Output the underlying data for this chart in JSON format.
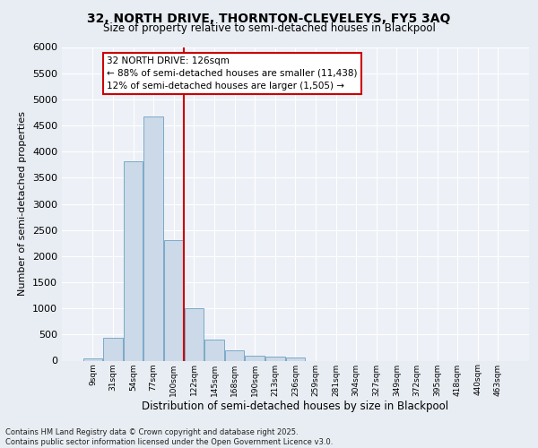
{
  "title_line1": "32, NORTH DRIVE, THORNTON-CLEVELEYS, FY5 3AQ",
  "title_line2": "Size of property relative to semi-detached houses in Blackpool",
  "xlabel": "Distribution of semi-detached houses by size in Blackpool",
  "ylabel": "Number of semi-detached properties",
  "bin_labels": [
    "9sqm",
    "31sqm",
    "54sqm",
    "77sqm",
    "100sqm",
    "122sqm",
    "145sqm",
    "168sqm",
    "190sqm",
    "213sqm",
    "236sqm",
    "259sqm",
    "281sqm",
    "304sqm",
    "327sqm",
    "349sqm",
    "372sqm",
    "395sqm",
    "418sqm",
    "440sqm",
    "463sqm"
  ],
  "bar_heights": [
    50,
    440,
    3820,
    4680,
    2300,
    1000,
    400,
    200,
    90,
    80,
    55,
    0,
    0,
    0,
    0,
    0,
    0,
    0,
    0,
    0,
    0
  ],
  "bar_color": "#ccd9e8",
  "bar_edge_color": "#7aaac8",
  "vline_x_idx": 5,
  "vline_color": "#cc0000",
  "annotation_text": "32 NORTH DRIVE: 126sqm\n← 88% of semi-detached houses are smaller (11,438)\n12% of semi-detached houses are larger (1,505) →",
  "annotation_box_color": "#cc0000",
  "ylim": [
    0,
    6000
  ],
  "yticks": [
    0,
    500,
    1000,
    1500,
    2000,
    2500,
    3000,
    3500,
    4000,
    4500,
    5000,
    5500,
    6000
  ],
  "footnote": "Contains HM Land Registry data © Crown copyright and database right 2025.\nContains public sector information licensed under the Open Government Licence v3.0.",
  "background_color": "#e8edf3",
  "plot_background_color": "#edf1f7",
  "title1_fontsize": 10,
  "title2_fontsize": 8.5,
  "ylabel_fontsize": 8,
  "xlabel_fontsize": 8.5,
  "ytick_fontsize": 8,
  "xtick_fontsize": 6.5,
  "annot_fontsize": 7.5,
  "footnote_fontsize": 6
}
